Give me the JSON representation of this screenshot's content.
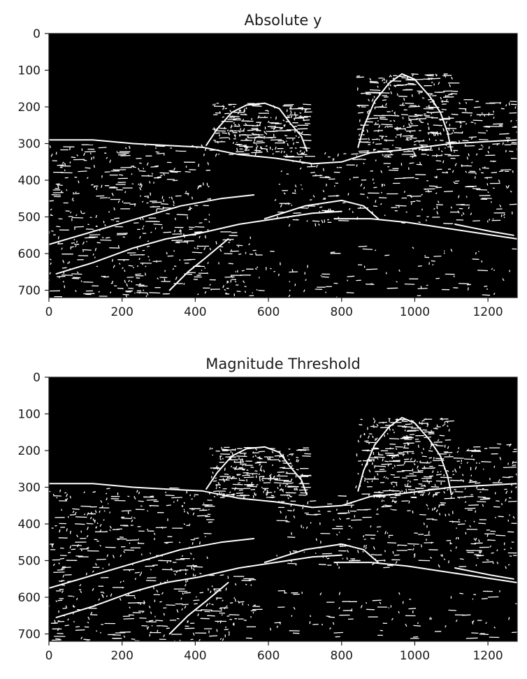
{
  "colors": {
    "background": "#000000",
    "edges": "#ffffff",
    "text": "#1a1a1a"
  },
  "chart_data": [
    {
      "type": "heatmap",
      "title": "Absolute y",
      "description_of_content": "binary edge image",
      "xlim": [
        0,
        1280
      ],
      "ylim": [
        720,
        0
      ],
      "xticks": [
        0,
        200,
        400,
        600,
        800,
        1000,
        1200
      ],
      "yticks": [
        0,
        100,
        200,
        300,
        400,
        500,
        600,
        700
      ],
      "grid": false
    },
    {
      "type": "heatmap",
      "title": "Magnitude Threshold",
      "xlim": [
        0,
        1280
      ],
      "ylim": [
        720,
        0
      ],
      "xticks": [
        0,
        200,
        400,
        600,
        800,
        1000,
        1200
      ],
      "yticks": [
        0,
        100,
        200,
        300,
        400,
        500,
        600,
        700
      ],
      "grid": false
    }
  ]
}
